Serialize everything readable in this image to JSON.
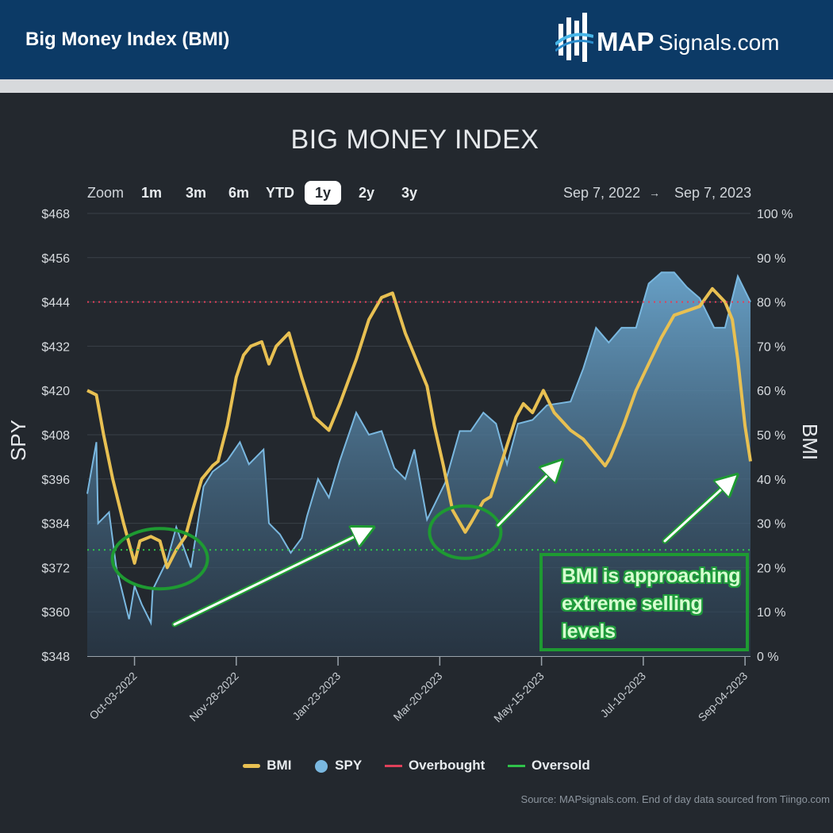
{
  "header": {
    "title": "Big Money Index (BMI)",
    "logo_bold": "MAP",
    "logo_regular": "Signals.com"
  },
  "toolbar": {
    "zoom_label": "Zoom",
    "buttons": [
      "1m",
      "3m",
      "6m",
      "YTD",
      "1y",
      "2y",
      "3y"
    ],
    "active": "1y",
    "range_from": "Sep 7, 2022",
    "range_arrow": "→",
    "range_to": "Sep 7, 2023"
  },
  "source": "Source: MAPsignals.com. End of day data sourced from Tiingo.com",
  "annotation": {
    "note": "BMI is approaching extreme selling levels"
  },
  "colors": {
    "bmi": "#e8c052",
    "spy": "#7ab8e0",
    "overbought": "#e0405a",
    "oversold": "#2fc24a",
    "annotation": "#1e9a32",
    "header": "#0c3a66"
  },
  "chart_data": {
    "type": "line",
    "title": "BIG MONEY INDEX",
    "ylabel_left": "SPY",
    "ylabel_right": "BMI",
    "x_range": [
      "2022-09-07",
      "2023-09-07"
    ],
    "x_ticks": [
      "Oct-03-2022",
      "Nov-28-2022",
      "Jan-23-2023",
      "Mar-20-2023",
      "May-15-2023",
      "Jul-10-2023",
      "Sep-04-2023"
    ],
    "y_left": {
      "ticks": [
        "$468",
        "$456",
        "$444",
        "$432",
        "$420",
        "$408",
        "$396",
        "$384",
        "$372",
        "$360",
        "$348"
      ],
      "range": [
        348,
        468
      ]
    },
    "y_right": {
      "ticks": [
        "100 %",
        "90 %",
        "80 %",
        "70 %",
        "60 %",
        "50 %",
        "40 %",
        "30 %",
        "20 %",
        "10 %",
        "0 %"
      ],
      "range": [
        0,
        100
      ]
    },
    "overbought_level": 80,
    "oversold_level": 24,
    "legend": [
      "BMI",
      "SPY",
      "Overbought",
      "Oversold"
    ],
    "legend_position": "bottom",
    "series": [
      {
        "name": "SPY",
        "kind": "area",
        "axis": "left",
        "points": [
          [
            "2022-09-07",
            392
          ],
          [
            "2022-09-12",
            406
          ],
          [
            "2022-09-13",
            384
          ],
          [
            "2022-09-19",
            387
          ],
          [
            "2022-09-23",
            372
          ],
          [
            "2022-09-30",
            358
          ],
          [
            "2022-10-03",
            367
          ],
          [
            "2022-10-07",
            362
          ],
          [
            "2022-10-12",
            357
          ],
          [
            "2022-10-13",
            366
          ],
          [
            "2022-10-17",
            370
          ],
          [
            "2022-10-21",
            374
          ],
          [
            "2022-10-26",
            383
          ],
          [
            "2022-11-03",
            372
          ],
          [
            "2022-11-10",
            394
          ],
          [
            "2022-11-15",
            398
          ],
          [
            "2022-11-23",
            401
          ],
          [
            "2022-11-30",
            406
          ],
          [
            "2022-12-05",
            400
          ],
          [
            "2022-12-13",
            404
          ],
          [
            "2022-12-16",
            384
          ],
          [
            "2022-12-22",
            381
          ],
          [
            "2022-12-28",
            376
          ],
          [
            "2023-01-03",
            380
          ],
          [
            "2023-01-06",
            386
          ],
          [
            "2023-01-12",
            396
          ],
          [
            "2023-01-18",
            391
          ],
          [
            "2023-01-24",
            401
          ],
          [
            "2023-02-02",
            414
          ],
          [
            "2023-02-09",
            408
          ],
          [
            "2023-02-16",
            409
          ],
          [
            "2023-02-23",
            399
          ],
          [
            "2023-03-01",
            396
          ],
          [
            "2023-03-06",
            404
          ],
          [
            "2023-03-13",
            385
          ],
          [
            "2023-03-17",
            389
          ],
          [
            "2023-03-23",
            395
          ],
          [
            "2023-03-31",
            409
          ],
          [
            "2023-04-06",
            409
          ],
          [
            "2023-04-13",
            414
          ],
          [
            "2023-04-20",
            411
          ],
          [
            "2023-04-26",
            400
          ],
          [
            "2023-05-02",
            411
          ],
          [
            "2023-05-10",
            412
          ],
          [
            "2023-05-18",
            416
          ],
          [
            "2023-05-31",
            417
          ],
          [
            "2023-06-07",
            426
          ],
          [
            "2023-06-14",
            437
          ],
          [
            "2023-06-21",
            433
          ],
          [
            "2023-06-28",
            437
          ],
          [
            "2023-07-06",
            437
          ],
          [
            "2023-07-13",
            449
          ],
          [
            "2023-07-20",
            452
          ],
          [
            "2023-07-27",
            452
          ],
          [
            "2023-08-03",
            448
          ],
          [
            "2023-08-10",
            445
          ],
          [
            "2023-08-18",
            437
          ],
          [
            "2023-08-24",
            437
          ],
          [
            "2023-08-31",
            451
          ],
          [
            "2023-09-07",
            444
          ]
        ]
      },
      {
        "name": "BMI",
        "kind": "line",
        "axis": "right",
        "points": [
          [
            "2022-09-07",
            60
          ],
          [
            "2022-09-12",
            59
          ],
          [
            "2022-09-16",
            50
          ],
          [
            "2022-09-21",
            40
          ],
          [
            "2022-09-27",
            30
          ],
          [
            "2022-10-03",
            21
          ],
          [
            "2022-10-06",
            26
          ],
          [
            "2022-10-12",
            27
          ],
          [
            "2022-10-17",
            26
          ],
          [
            "2022-10-21",
            20
          ],
          [
            "2022-10-26",
            24
          ],
          [
            "2022-10-31",
            27
          ],
          [
            "2022-11-04",
            33
          ],
          [
            "2022-11-09",
            40
          ],
          [
            "2022-11-15",
            43
          ],
          [
            "2022-11-18",
            44
          ],
          [
            "2022-11-23",
            52
          ],
          [
            "2022-11-28",
            63
          ],
          [
            "2022-12-02",
            68
          ],
          [
            "2022-12-06",
            70
          ],
          [
            "2022-12-12",
            71
          ],
          [
            "2022-12-16",
            66
          ],
          [
            "2022-12-20",
            70
          ],
          [
            "2022-12-27",
            73
          ],
          [
            "2023-01-03",
            63
          ],
          [
            "2023-01-10",
            54
          ],
          [
            "2023-01-18",
            51
          ],
          [
            "2023-01-24",
            57
          ],
          [
            "2023-02-02",
            67
          ],
          [
            "2023-02-09",
            76
          ],
          [
            "2023-02-16",
            81
          ],
          [
            "2023-02-22",
            82
          ],
          [
            "2023-03-01",
            73
          ],
          [
            "2023-03-06",
            68
          ],
          [
            "2023-03-13",
            61
          ],
          [
            "2023-03-17",
            52
          ],
          [
            "2023-03-22",
            43
          ],
          [
            "2023-03-27",
            33
          ],
          [
            "2023-04-03",
            28
          ],
          [
            "2023-04-06",
            30
          ],
          [
            "2023-04-13",
            35
          ],
          [
            "2023-04-17",
            36
          ],
          [
            "2023-04-24",
            45
          ],
          [
            "2023-05-01",
            54
          ],
          [
            "2023-05-05",
            57
          ],
          [
            "2023-05-10",
            55
          ],
          [
            "2023-05-16",
            60
          ],
          [
            "2023-05-22",
            55
          ],
          [
            "2023-05-31",
            51
          ],
          [
            "2023-06-07",
            49
          ],
          [
            "2023-06-13",
            46
          ],
          [
            "2023-06-19",
            43
          ],
          [
            "2023-06-22",
            45
          ],
          [
            "2023-06-29",
            52
          ],
          [
            "2023-07-06",
            60
          ],
          [
            "2023-07-13",
            66
          ],
          [
            "2023-07-20",
            72
          ],
          [
            "2023-07-27",
            77
          ],
          [
            "2023-08-03",
            78
          ],
          [
            "2023-08-10",
            79
          ],
          [
            "2023-08-17",
            83
          ],
          [
            "2023-08-24",
            80
          ],
          [
            "2023-08-28",
            76
          ],
          [
            "2023-08-31",
            67
          ],
          [
            "2023-09-04",
            52
          ],
          [
            "2023-09-07",
            44
          ]
        ]
      }
    ]
  }
}
